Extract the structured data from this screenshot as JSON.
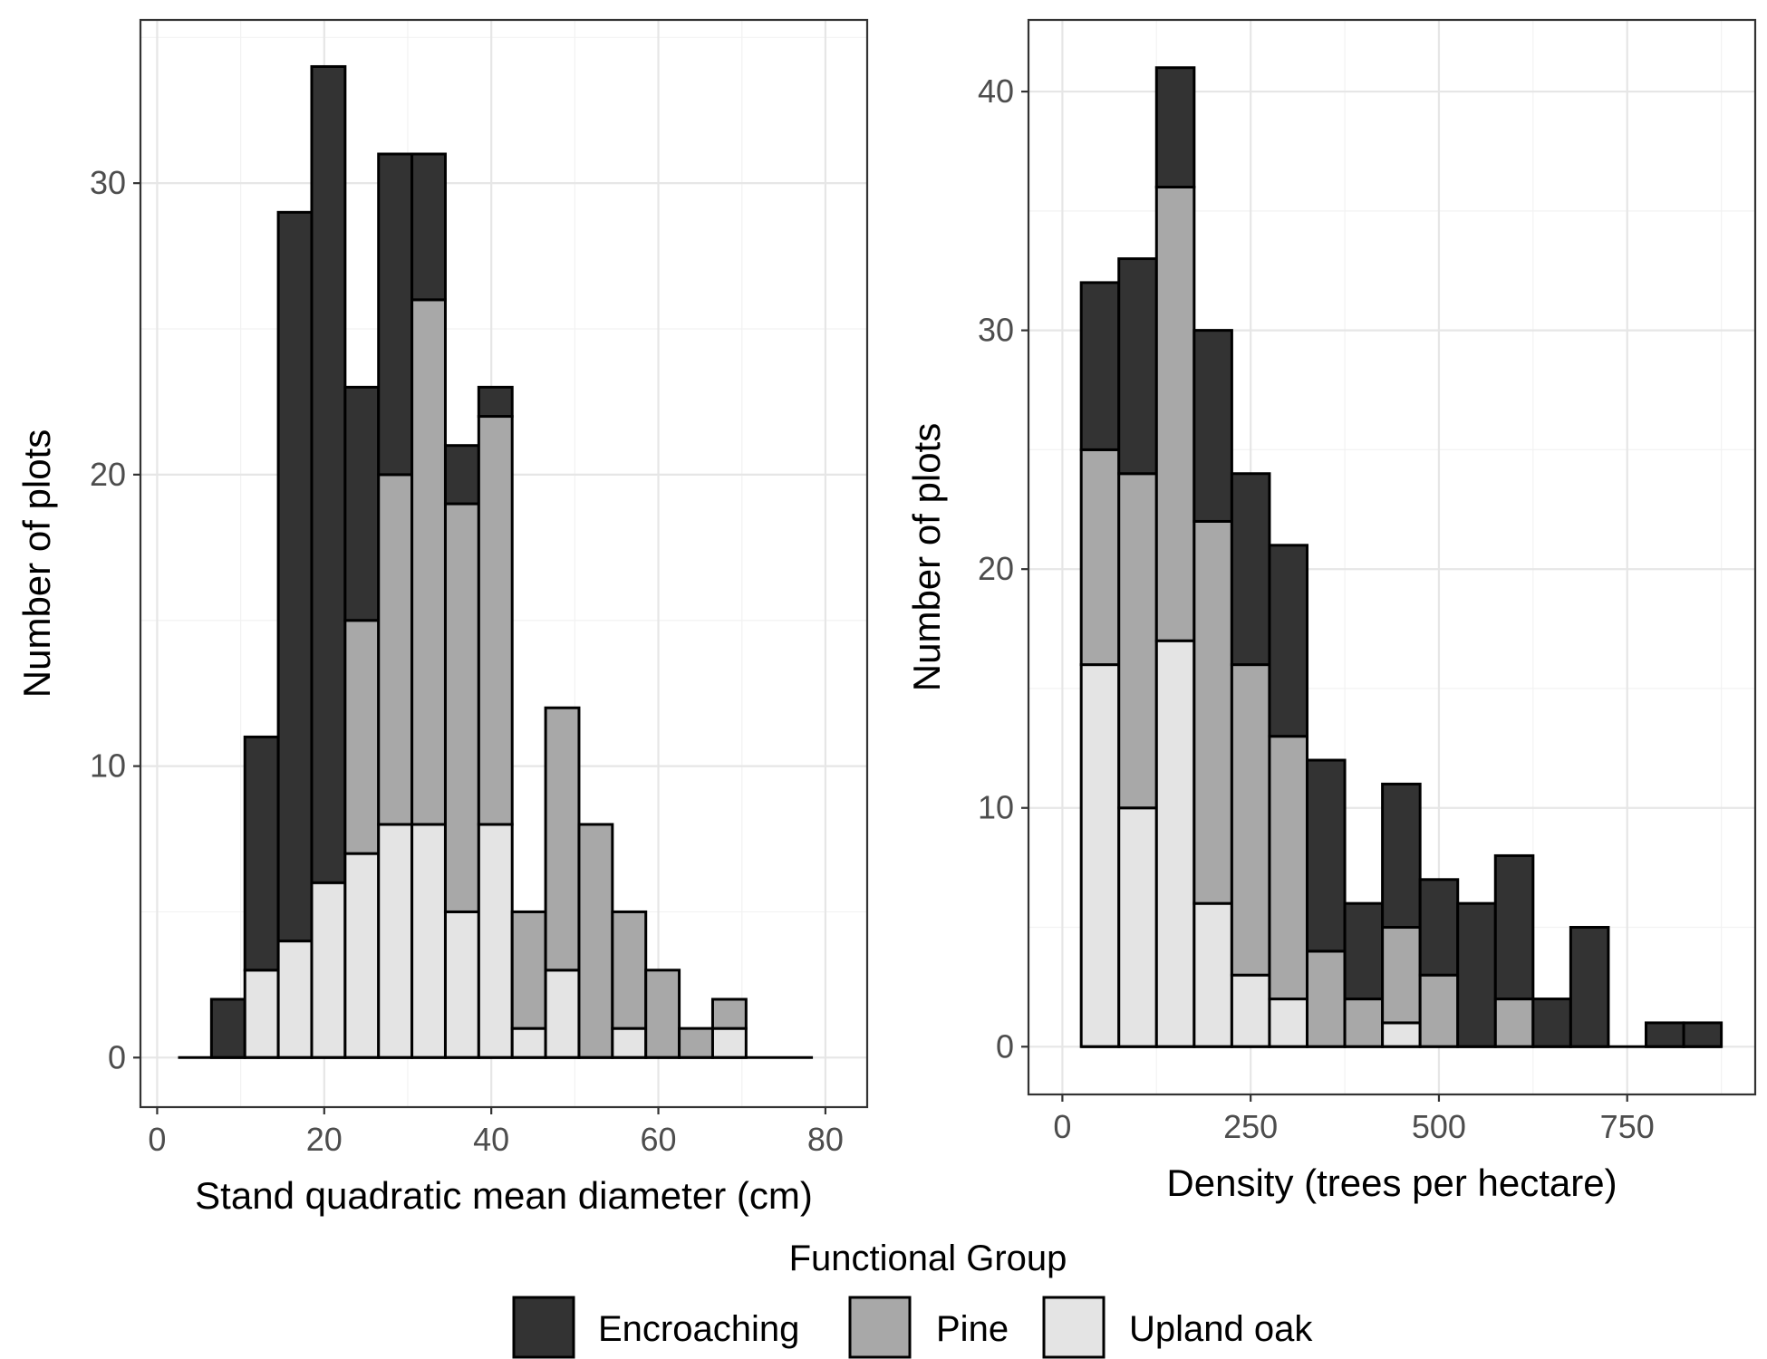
{
  "colors": {
    "Encroaching": "#333333",
    "Pine": "#a8a8a8",
    "Upland oak": "#e4e4e4"
  },
  "legend": {
    "title": "Functional Group",
    "items": [
      "Encroaching",
      "Pine",
      "Upland oak"
    ]
  },
  "chart_data": [
    {
      "type": "bar",
      "stacked": true,
      "xlabel": "Stand quadratic mean diameter (cm)",
      "ylabel": "Number of plots",
      "xlim": [
        -2,
        85
      ],
      "ylim": [
        -1.7,
        35.6
      ],
      "x_ticks": [
        0,
        20,
        40,
        60,
        80
      ],
      "y_ticks": [
        0,
        10,
        20,
        30
      ],
      "bin_width": 4,
      "bin_start": 2.5,
      "x_range_end": 78.5,
      "grid": true,
      "series": [
        {
          "name": "Upland oak",
          "values": [
            0,
            0,
            3,
            4,
            6,
            7,
            8,
            8,
            5,
            8,
            1,
            3,
            0,
            1,
            0,
            0,
            1,
            0,
            0
          ]
        },
        {
          "name": "Pine",
          "values": [
            0,
            0,
            0,
            0,
            0,
            8,
            12,
            18,
            14,
            14,
            4,
            9,
            8,
            4,
            3,
            1,
            1,
            0,
            0
          ]
        },
        {
          "name": "Encroaching",
          "values": [
            0,
            2,
            8,
            25,
            28,
            8,
            11,
            5,
            2,
            1,
            0,
            0,
            0,
            0,
            0,
            0,
            0,
            0,
            0
          ]
        }
      ]
    },
    {
      "type": "bar",
      "stacked": true,
      "xlabel": "Density (trees per hectare)",
      "ylabel": "Number of plots",
      "xlim": [
        -45,
        920
      ],
      "ylim": [
        -2,
        43
      ],
      "x_ticks": [
        0,
        250,
        500,
        750
      ],
      "y_ticks": [
        0,
        10,
        20,
        30,
        40
      ],
      "bin_width": 50,
      "bin_start": 25,
      "grid": true,
      "series": [
        {
          "name": "Upland oak",
          "values": [
            16,
            10,
            17,
            6,
            3,
            2,
            0,
            0,
            1,
            0,
            0,
            0,
            0,
            0,
            0,
            0,
            0
          ]
        },
        {
          "name": "Pine",
          "values": [
            9,
            14,
            19,
            16,
            13,
            11,
            4,
            2,
            4,
            3,
            0,
            2,
            0,
            0,
            0,
            0,
            0
          ]
        },
        {
          "name": "Encroaching",
          "values": [
            7,
            9,
            5,
            8,
            8,
            8,
            8,
            4,
            6,
            4,
            6,
            6,
            2,
            5,
            0,
            1,
            1
          ]
        }
      ]
    }
  ]
}
